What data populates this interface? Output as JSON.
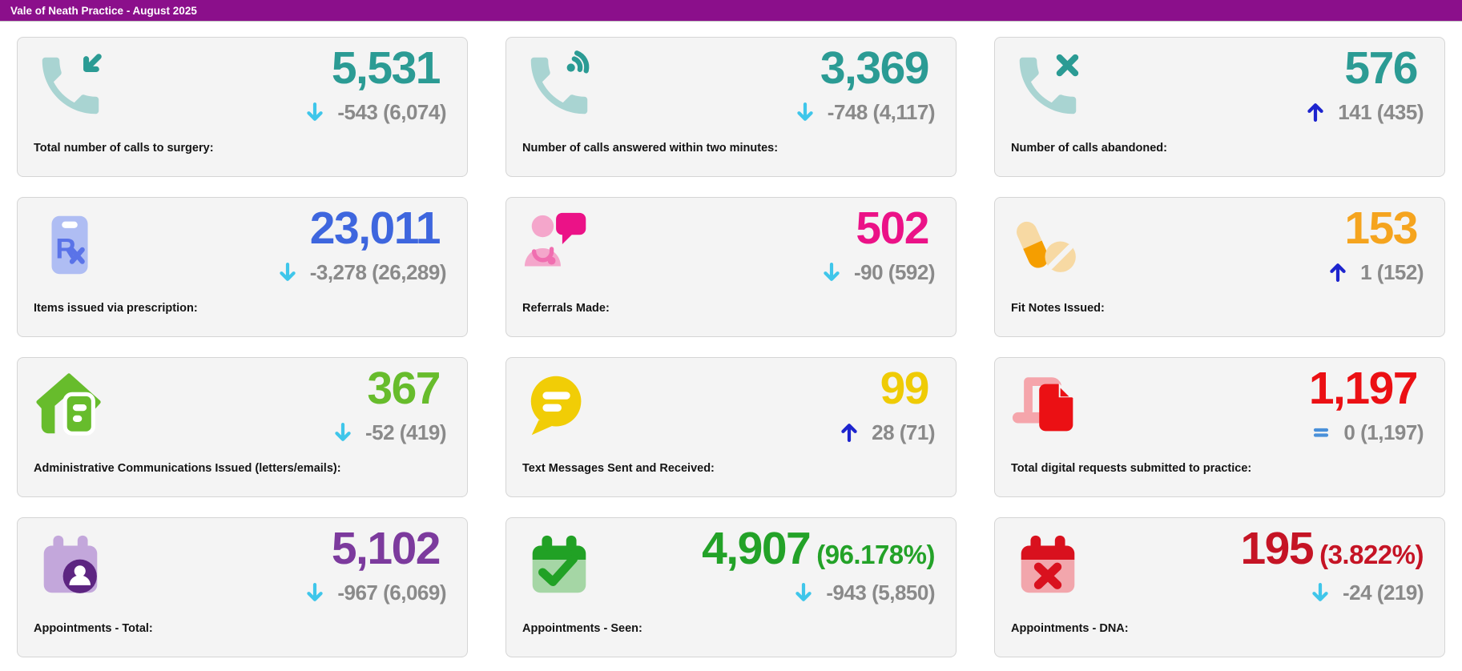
{
  "header": {
    "title": "Vale of Neath Practice - August 2025",
    "background": "#8b0f8b"
  },
  "trend_colors": {
    "down": "#3fc6ea",
    "up": "#1d24ce",
    "equal": "#4a90d9"
  },
  "cards": [
    {
      "id": "calls-total",
      "icon": "phone-incoming-icon",
      "icon_colors": {
        "light": "#a9d4d2",
        "dark": "#2b9b94"
      },
      "label": "Total number of calls to surgery:",
      "value": "5,531",
      "value_suffix": "",
      "value_color": "#2b9b94",
      "trend": "down",
      "delta": "-543 (6,074)"
    },
    {
      "id": "calls-answered",
      "icon": "phone-ringing-icon",
      "icon_colors": {
        "light": "#a9d4d2",
        "dark": "#2b9b94"
      },
      "label": "Number of calls answered within two minutes:",
      "value": "3,369",
      "value_suffix": "",
      "value_color": "#2b9b94",
      "trend": "down",
      "delta": "-748 (4,117)"
    },
    {
      "id": "calls-abandoned",
      "icon": "phone-missed-icon",
      "icon_colors": {
        "light": "#a9d4d2",
        "dark": "#2b9b94"
      },
      "label": "Number of calls abandoned:",
      "value": "576",
      "value_suffix": "",
      "value_color": "#2b9b94",
      "trend": "up",
      "delta": "141 (435)"
    },
    {
      "id": "prescription-items",
      "icon": "prescription-clipboard-icon",
      "icon_colors": {
        "light": "#afbdf3",
        "dark": "#5a73e8"
      },
      "label": "Items issued via prescription:",
      "value": "23,011",
      "value_suffix": "",
      "value_color": "#3e66de",
      "trend": "down",
      "delta": "-3,278 (26,289)"
    },
    {
      "id": "referrals-made",
      "icon": "doctor-referral-icon",
      "icon_colors": {
        "light": "#f4a6cb",
        "dark": "#eb1287",
        "accent": "#f06eb0"
      },
      "label": "Referrals Made:",
      "value": "502",
      "value_suffix": "",
      "value_color": "#eb1287",
      "trend": "down",
      "delta": "-90 (592)"
    },
    {
      "id": "fit-notes",
      "icon": "pills-icon",
      "icon_colors": {
        "light": "#f7d9a3",
        "dark": "#f59e00"
      },
      "label": "Fit Notes Issued:",
      "value": "153",
      "value_suffix": "",
      "value_color": "#f5a41e",
      "trend": "up",
      "delta": "1 (152)"
    },
    {
      "id": "admin-communications",
      "icon": "letters-email-icon",
      "icon_colors": {
        "light": "#67bc2c",
        "dark": "#67bc2c"
      },
      "label": "Administrative Communications Issued (letters/emails):",
      "value": "367",
      "value_suffix": "",
      "value_color": "#67bc2c",
      "trend": "down",
      "delta": "-52 (419)"
    },
    {
      "id": "text-messages",
      "icon": "speech-bubble-icon",
      "icon_colors": {
        "light": "#f1cd06",
        "dark": "#f1cd06"
      },
      "label": "Text Messages Sent and Received:",
      "value": "99",
      "value_suffix": "",
      "value_color": "#efcb05",
      "trend": "up",
      "delta": "28 (71)"
    },
    {
      "id": "digital-requests",
      "icon": "laptop-document-icon",
      "icon_colors": {
        "light": "#f5a5ab",
        "dark": "#eb1014"
      },
      "label": "Total digital requests submitted to practice:",
      "value": "1,197",
      "value_suffix": "",
      "value_color": "#eb1014",
      "trend": "equal",
      "delta": "0 (1,197)"
    },
    {
      "id": "appointments-total",
      "icon": "calendar-person-icon",
      "icon_colors": {
        "light": "#c3a7db",
        "dark": "#5d2581"
      },
      "label": "Appointments - Total:",
      "value": "5,102",
      "value_suffix": "",
      "value_color": "#7c3a9d",
      "trend": "down",
      "delta": "-967 (6,069)"
    },
    {
      "id": "appointments-seen",
      "icon": "calendar-check-icon",
      "icon_colors": {
        "light": "#a5d6a5",
        "dark": "#21a125"
      },
      "label": "Appointments - Seen:",
      "value": "4,907",
      "value_suffix": "(96.178%)",
      "value_color": "#23a228",
      "trend": "down",
      "delta": "-943 (5,850)"
    },
    {
      "id": "appointments-dna",
      "icon": "calendar-x-icon",
      "icon_colors": {
        "light": "#f2a6ac",
        "dark": "#d9111e"
      },
      "label": "Appointments - DNA:",
      "value": "195",
      "value_suffix": "(3.822%)",
      "value_color": "#c51425",
      "trend": "down",
      "delta": "-24 (219)"
    }
  ]
}
